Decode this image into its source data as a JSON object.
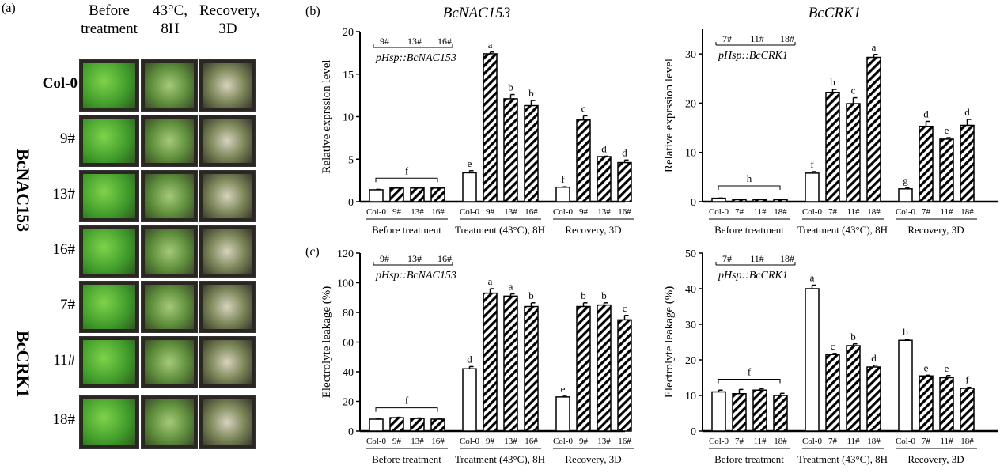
{
  "panel_labels": {
    "a": "(a)",
    "b": "(b)",
    "c": "(c)"
  },
  "panel_a": {
    "columns": [
      "Before treatment",
      "43°C, 8H",
      "Recovery, 3D"
    ],
    "rows": [
      "Col-0",
      "9#",
      "13#",
      "16#",
      "7#",
      "11#",
      "18#"
    ],
    "groups": [
      "BcNAC153",
      "BcCRK1"
    ]
  },
  "chart_data": [
    {
      "id": "b-left",
      "type": "bar",
      "title": "BcNAC153",
      "ylabel": "Relative exprssion level",
      "ylim": [
        0,
        20
      ],
      "yticks": [
        0,
        5,
        10,
        15,
        20
      ],
      "legend": {
        "lines": [
          "9#",
          "13#",
          "16#"
        ],
        "construct": "pHsp::BcNAC153"
      },
      "groups": [
        {
          "label": "Before treatment",
          "categories": [
            "Col-0",
            "9#",
            "13#",
            "16#"
          ],
          "values": [
            1.4,
            1.6,
            1.6,
            1.6
          ],
          "errors": [
            0.05,
            0.05,
            0.05,
            0.05
          ],
          "letters": [
            "f"
          ],
          "bracket": true
        },
        {
          "label": "Treatment (43°C), 8H",
          "categories": [
            "Col-0",
            "9#",
            "13#",
            "16#"
          ],
          "values": [
            3.4,
            17.4,
            12.1,
            11.3
          ],
          "errors": [
            0.25,
            0.2,
            0.5,
            0.6
          ],
          "letters": [
            "e",
            "a",
            "b",
            "b"
          ]
        },
        {
          "label": "Recovery, 3D",
          "categories": [
            "Col-0",
            "9#",
            "13#",
            "16#"
          ],
          "values": [
            1.7,
            9.6,
            5.3,
            4.6
          ],
          "errors": [
            0.05,
            0.5,
            0.05,
            0.3
          ],
          "letters": [
            "f",
            "c",
            "d",
            "d"
          ]
        }
      ]
    },
    {
      "id": "b-right",
      "type": "bar",
      "title": "BcCRK1",
      "ylabel": "Relative exprssion level",
      "ylim": [
        0,
        35
      ],
      "yticks": [
        0,
        10,
        20,
        30
      ],
      "legend": {
        "lines": [
          "7#",
          "11#",
          "18#"
        ],
        "construct": "pHsp::BcCRK1"
      },
      "groups": [
        {
          "label": "Before treatment",
          "categories": [
            "Col-0",
            "7#",
            "11#",
            "18#"
          ],
          "values": [
            0.7,
            0.4,
            0.4,
            0.4
          ],
          "errors": [
            0.05,
            0.05,
            0.05,
            0.05
          ],
          "letters": [
            "h"
          ],
          "bracket": true
        },
        {
          "label": "Treatment (43°C), 8H",
          "categories": [
            "Col-0",
            "7#",
            "11#",
            "18#"
          ],
          "values": [
            5.8,
            22.2,
            19.9,
            29.3
          ],
          "errors": [
            0.3,
            0.6,
            1.2,
            0.6
          ],
          "letters": [
            "f",
            "b",
            "c",
            "a"
          ]
        },
        {
          "label": "Recovery, 3D",
          "categories": [
            "Col-0",
            "7#",
            "11#",
            "18#"
          ],
          "values": [
            2.6,
            15.3,
            12.7,
            15.5
          ],
          "errors": [
            0.2,
            1.0,
            0.3,
            1.2
          ],
          "letters": [
            "g",
            "d",
            "e",
            "d"
          ]
        }
      ]
    },
    {
      "id": "c-left",
      "type": "bar",
      "title": "",
      "ylabel": "Electrolyte leakage (%)",
      "ylim": [
        0,
        120
      ],
      "yticks": [
        0,
        20,
        40,
        60,
        80,
        100,
        120
      ],
      "legend": {
        "lines": [
          "9#",
          "13#",
          "16#"
        ],
        "construct": "pHsp::BcNAC153"
      },
      "groups": [
        {
          "label": "Before treatment",
          "categories": [
            "Col-0",
            "9#",
            "13#",
            "16#"
          ],
          "values": [
            8,
            9,
            8.5,
            8
          ],
          "errors": [
            0.3,
            0.3,
            0.3,
            0.3
          ],
          "letters": [
            "f"
          ],
          "bracket": true
        },
        {
          "label": "Treatment (43°C), 8H",
          "categories": [
            "Col-0",
            "9#",
            "13#",
            "16#"
          ],
          "values": [
            42,
            93,
            91,
            84
          ],
          "errors": [
            1.5,
            3,
            1.5,
            2.5
          ],
          "letters": [
            "d",
            "a",
            "a",
            "b"
          ]
        },
        {
          "label": "Recovery, 3D",
          "categories": [
            "Col-0",
            "9#",
            "13#",
            "16#"
          ],
          "values": [
            23,
            84,
            85,
            75
          ],
          "errors": [
            0.5,
            2.5,
            1.5,
            3
          ],
          "letters": [
            "e",
            "b",
            "b",
            "c"
          ]
        }
      ]
    },
    {
      "id": "c-right",
      "type": "bar",
      "title": "",
      "ylabel": "Electrolyte leakage (%)",
      "ylim": [
        0,
        50
      ],
      "yticks": [
        0,
        10,
        20,
        30,
        40,
        50
      ],
      "legend": {
        "lines": [
          "7#",
          "11#",
          "18#"
        ],
        "construct": "pHsp::BcCRK1"
      },
      "groups": [
        {
          "label": "Before treatment",
          "categories": [
            "Col-0",
            "7#",
            "11#",
            "18#"
          ],
          "values": [
            11,
            10.5,
            11.5,
            10
          ],
          "errors": [
            0.5,
            1.2,
            0.4,
            0.6
          ],
          "letters": [
            "f"
          ],
          "bracket": true
        },
        {
          "label": "Treatment (43°C), 8H",
          "categories": [
            "Col-0",
            "7#",
            "11#",
            "18#"
          ],
          "values": [
            40,
            21.5,
            24,
            18
          ],
          "errors": [
            1,
            0.3,
            0.5,
            0.5
          ],
          "letters": [
            "a",
            "c",
            "b",
            "d"
          ]
        },
        {
          "label": "Recovery, 3D",
          "categories": [
            "Col-0",
            "7#",
            "11#",
            "18#"
          ],
          "values": [
            25.5,
            15.5,
            15,
            12
          ],
          "errors": [
            0.3,
            0.2,
            0.6,
            0.3
          ],
          "letters": [
            "b",
            "e",
            "e",
            "f"
          ]
        }
      ]
    }
  ]
}
